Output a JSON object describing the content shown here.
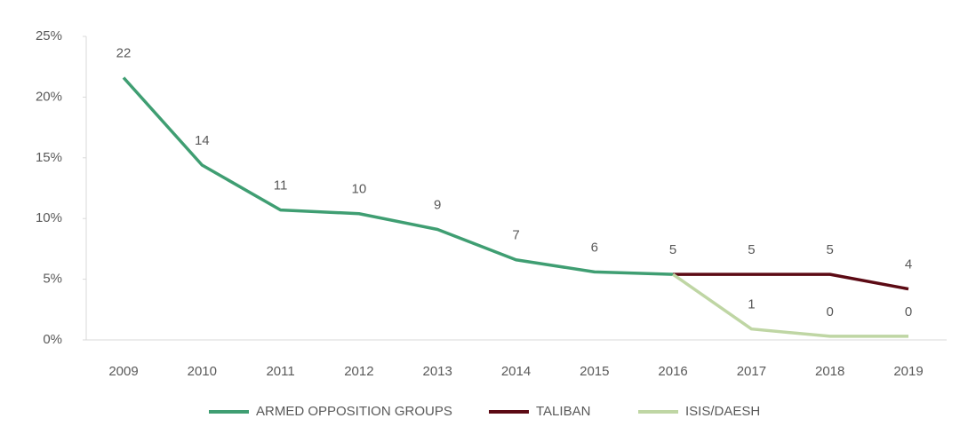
{
  "chart_data": {
    "type": "line",
    "categories": [
      "2009",
      "2010",
      "2011",
      "2012",
      "2013",
      "2014",
      "2015",
      "2016",
      "2017",
      "2018",
      "2019"
    ],
    "series": [
      {
        "name": "ARMED OPPOSITION GROUPS",
        "color": "#3f9e72",
        "values": [
          21.6,
          14.4,
          10.7,
          10.4,
          9.1,
          6.6,
          5.6,
          5.4,
          null,
          null,
          null
        ],
        "value_labels": [
          "22",
          "14",
          "11",
          "10",
          "9",
          "7",
          "6",
          "5",
          null,
          null,
          null
        ]
      },
      {
        "name": "TALIBAN",
        "color": "#5c0a14",
        "values": [
          null,
          null,
          null,
          null,
          null,
          null,
          null,
          5.4,
          5.4,
          5.4,
          4.2
        ],
        "value_labels": [
          null,
          null,
          null,
          null,
          null,
          null,
          null,
          null,
          "5",
          "5",
          "4"
        ]
      },
      {
        "name": "ISIS/DAESH",
        "color": "#bfd6a4",
        "values": [
          null,
          null,
          null,
          null,
          null,
          null,
          null,
          5.4,
          0.9,
          0.3,
          0.3
        ],
        "value_labels": [
          null,
          null,
          null,
          null,
          null,
          null,
          null,
          null,
          "1",
          "0",
          "0"
        ]
      }
    ],
    "ylim": [
      0,
      25
    ],
    "yticks": [
      {
        "value": 0,
        "label": "0%"
      },
      {
        "value": 5,
        "label": "5%"
      },
      {
        "value": 10,
        "label": "10%"
      },
      {
        "value": 15,
        "label": "15%"
      },
      {
        "value": 20,
        "label": "20%"
      },
      {
        "value": 25,
        "label": "25%"
      }
    ],
    "grid": false,
    "legend": "bottom"
  }
}
